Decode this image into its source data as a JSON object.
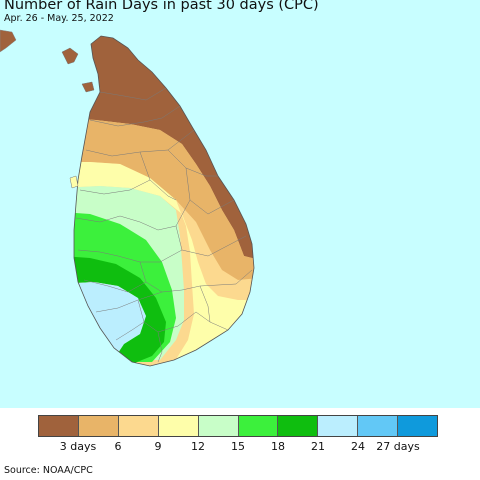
{
  "title": "Number of Rain Days in past 30 days (CPC)",
  "subtitle": "Apr. 26 - May. 25, 2022",
  "source": "Source: NOAA/CPC",
  "colors": {
    "ocean": "#c8feff",
    "land_outside": "#c8c8c8",
    "border": "#888888"
  },
  "legend": {
    "colors": [
      "#a0623c",
      "#e8b468",
      "#fcd98f",
      "#fefeaa",
      "#c8fec8",
      "#3cf03c",
      "#0fbe0f",
      "#bbeefe",
      "#62c8f6",
      "#0f9adc"
    ],
    "ticks": [
      "3 days",
      "6",
      "9",
      "12",
      "15",
      "18",
      "21",
      "24",
      "27 days"
    ]
  }
}
